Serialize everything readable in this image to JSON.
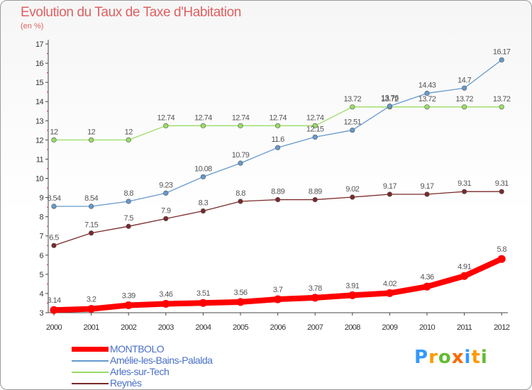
{
  "chart_data": {
    "type": "line",
    "title": "Evolution du Taux de Taxe d'Habitation",
    "subtitle": "(en %)",
    "x": [
      "2000",
      "2001",
      "2002",
      "2003",
      "2004",
      "2005",
      "2006",
      "2007",
      "2008",
      "2009",
      "2010",
      "2011",
      "2012"
    ],
    "ylim": [
      3,
      17
    ],
    "yticks": [
      "3",
      "4",
      "5",
      "6",
      "7",
      "8",
      "9",
      "10",
      "11",
      "12",
      "13",
      "14",
      "15",
      "16",
      "17"
    ],
    "grid": false,
    "legend_position": "bottom-left",
    "series": [
      {
        "name": "MONTBOLO",
        "color": "#ff0000",
        "values": [
          3.14,
          3.2,
          3.39,
          3.46,
          3.51,
          3.56,
          3.7,
          3.78,
          3.91,
          4.02,
          4.36,
          4.91,
          5.8
        ],
        "labels": [
          "3.14",
          "3.2",
          "3.39",
          "3.46",
          "3.51",
          "3.56",
          "3.7",
          "3.78",
          "3.91",
          "4.02",
          "4.36",
          "4.91",
          "5.8"
        ]
      },
      {
        "name": "Amélie-les-Bains-Palalda",
        "color": "#6699cc",
        "values": [
          8.54,
          8.54,
          8.8,
          9.23,
          10.08,
          10.79,
          11.6,
          12.15,
          12.51,
          13.76,
          14.43,
          14.7,
          16.17
        ],
        "labels": [
          "8.54",
          "8.54",
          "8.8",
          "9.23",
          "10.08",
          "10.79",
          "11.6",
          "12.15",
          "12.51",
          "13.76",
          "14.43",
          "14.7",
          "16.17"
        ]
      },
      {
        "name": "Arles-sur-Tech",
        "color": "#99dd66",
        "values": [
          12,
          12,
          12,
          12.74,
          12.74,
          12.74,
          12.74,
          12.74,
          13.72,
          13.72,
          13.72,
          13.72,
          13.72
        ],
        "labels": [
          "12",
          "12",
          "12",
          "12.74",
          "12.74",
          "12.74",
          "12.74",
          "12.74",
          "13.72",
          "13.72",
          "13.72",
          "13.72",
          "13.72"
        ]
      },
      {
        "name": "Reynès",
        "color": "#7a2a2a",
        "values": [
          6.5,
          7.15,
          7.5,
          7.9,
          8.3,
          8.8,
          8.89,
          8.89,
          9.02,
          9.17,
          9.17,
          9.31,
          9.31
        ],
        "labels": [
          "6.5",
          "7.15",
          "7.5",
          "7.9",
          "8.3",
          "8.8",
          "8.89",
          "8.89",
          "9.02",
          "9.17",
          "9.17",
          "9.31",
          "9.31"
        ]
      }
    ]
  },
  "logo": {
    "letters": [
      "P",
      "r",
      "o",
      "x",
      "i",
      "t",
      "i"
    ],
    "colors": [
      "#3399ff",
      "#ff9900",
      "#66bb33",
      "#ff6600",
      "#3399ff",
      "#ff9900",
      "#66bb33"
    ]
  }
}
